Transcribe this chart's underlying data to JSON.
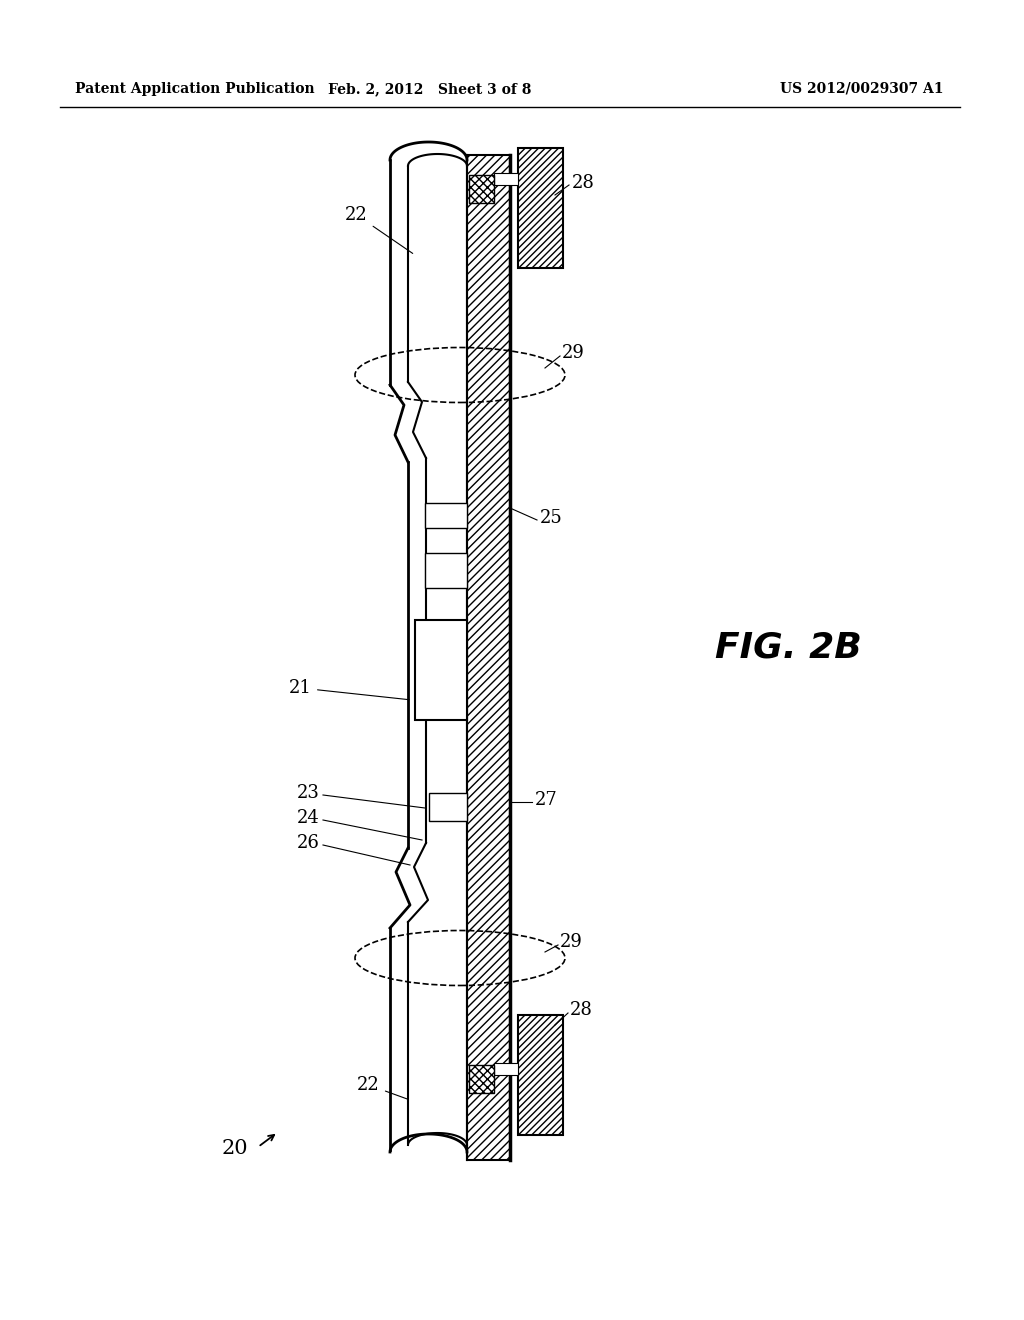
{
  "bg_color": "#ffffff",
  "header_left": "Patent Application Publication",
  "header_mid": "Feb. 2, 2012   Sheet 3 of 8",
  "header_right": "US 2012/0029307 A1",
  "fig_label": "FIG. 2B"
}
